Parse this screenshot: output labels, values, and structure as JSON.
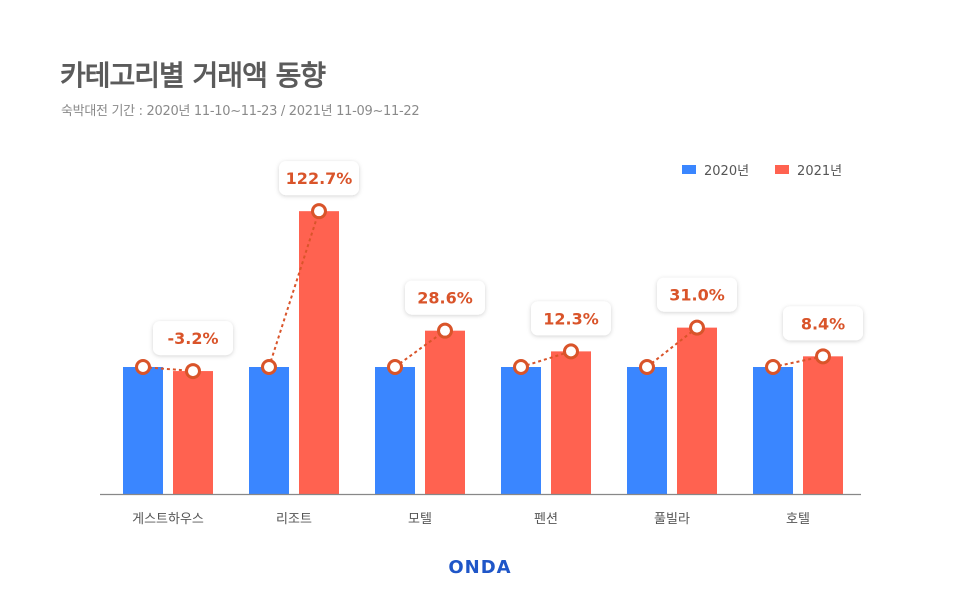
{
  "title": "카테고리별 거래액 동향",
  "subtitle": "숙박대전 기간 : 2020년 11-10~11-23 / 2021년 11-09~11-22",
  "logo": "ONDA",
  "colors": {
    "series2020": "#3a86ff",
    "series2021": "#ff6250",
    "label": "#d9542a",
    "axis": "#888888"
  },
  "chart_data": {
    "type": "bar",
    "title": "카테고리별 거래액 동향",
    "categories": [
      "게스트하우스",
      "리조트",
      "모텔",
      "펜션",
      "풀빌라",
      "호텔"
    ],
    "series": [
      {
        "name": "2020년",
        "values": [
          100,
          100,
          100,
          100,
          100,
          100
        ]
      },
      {
        "name": "2021년",
        "values": [
          96.8,
          222.7,
          128.6,
          112.3,
          131.0,
          108.4
        ]
      }
    ],
    "growth_labels": [
      "-3.2%",
      "122.7%",
      "28.6%",
      "12.3%",
      "31.0%",
      "8.4%"
    ],
    "ylim": [
      0,
      260
    ],
    "grid": false,
    "legend": "top-right"
  }
}
